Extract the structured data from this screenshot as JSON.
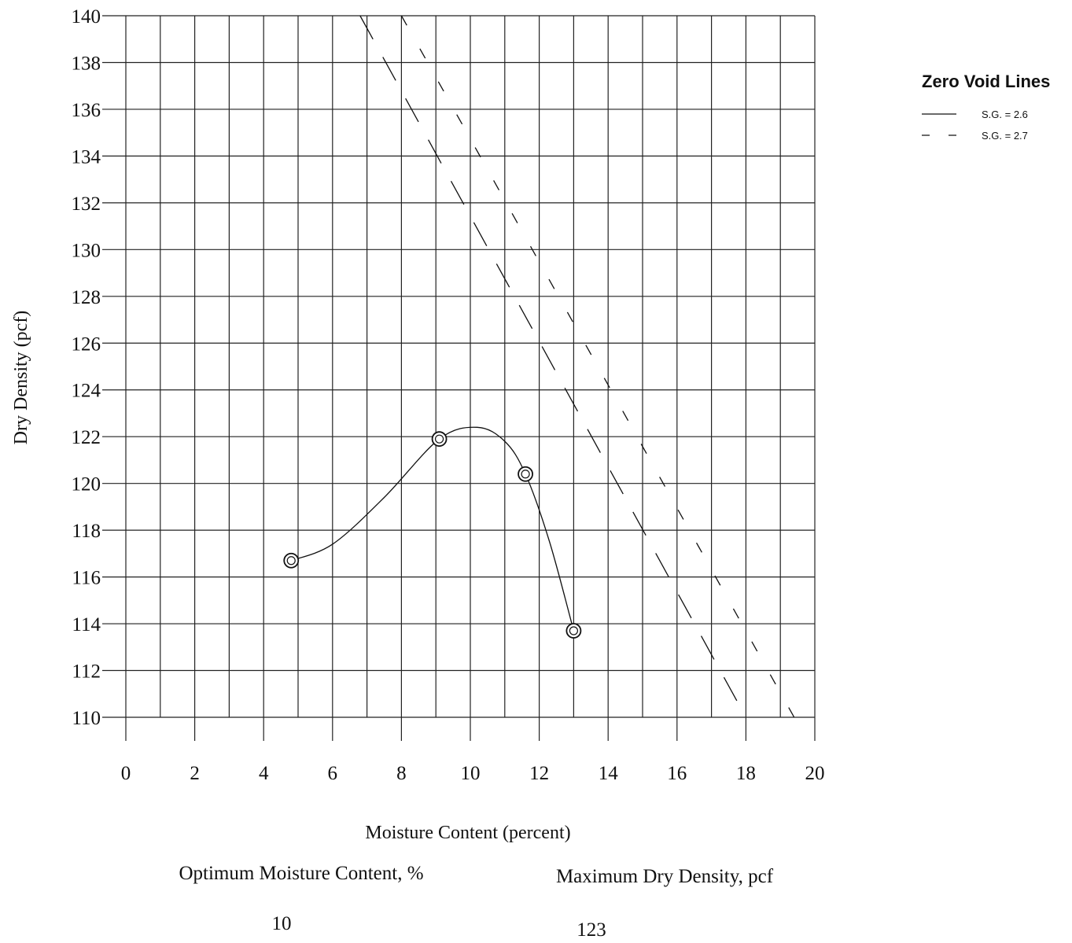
{
  "chart_data": {
    "type": "scatter",
    "title": "",
    "xlabel": "Moisture Content (percent)",
    "ylabel": "Dry Density (pcf)",
    "xlim": [
      0,
      20
    ],
    "ylim": [
      110,
      140
    ],
    "x_ticks": [
      "0",
      "2",
      "4",
      "6",
      "8",
      "10",
      "12",
      "14",
      "16",
      "18",
      "20"
    ],
    "y_ticks": [
      "110",
      "112",
      "114",
      "116",
      "118",
      "120",
      "122",
      "124",
      "126",
      "128",
      "130",
      "132",
      "134",
      "136",
      "138",
      "140"
    ],
    "grid": true,
    "series": [
      {
        "name": "",
        "style": "markers-with-smooth-curve",
        "color": "#111111",
        "points": [
          {
            "x": 4.8,
            "y": 116.7
          },
          {
            "x": 9.1,
            "y": 121.9
          },
          {
            "x": 11.6,
            "y": 120.4
          },
          {
            "x": 13.0,
            "y": 113.7
          }
        ],
        "curve": [
          {
            "x": 4.8,
            "y": 116.7
          },
          {
            "x": 6.0,
            "y": 117.4
          },
          {
            "x": 7.5,
            "y": 119.4
          },
          {
            "x": 9.1,
            "y": 121.9
          },
          {
            "x": 10.2,
            "y": 122.4
          },
          {
            "x": 11.0,
            "y": 121.8
          },
          {
            "x": 11.6,
            "y": 120.4
          },
          {
            "x": 12.3,
            "y": 117.5
          },
          {
            "x": 13.0,
            "y": 113.7
          }
        ]
      },
      {
        "name": "S.G. = 2.6",
        "style": "long-dash",
        "color": "#111111",
        "points": [
          {
            "x": 6.8,
            "y": 140
          },
          {
            "x": 18.0,
            "y": 110
          }
        ]
      },
      {
        "name": "S.G. = 2.7",
        "style": "short-dash",
        "color": "#111111",
        "points": [
          {
            "x": 8.0,
            "y": 140
          },
          {
            "x": 19.4,
            "y": 110
          }
        ]
      }
    ],
    "legend": {
      "title": "Zero Void Lines",
      "position": "right",
      "entries": [
        "S.G. = 2.6",
        "S.G. = 2.7"
      ]
    }
  },
  "summary": {
    "optimum_label": "Optimum Moisture Content, %",
    "optimum_value": "10",
    "max_density_label": "Maximum Dry Density, pcf",
    "max_density_value": "123"
  }
}
